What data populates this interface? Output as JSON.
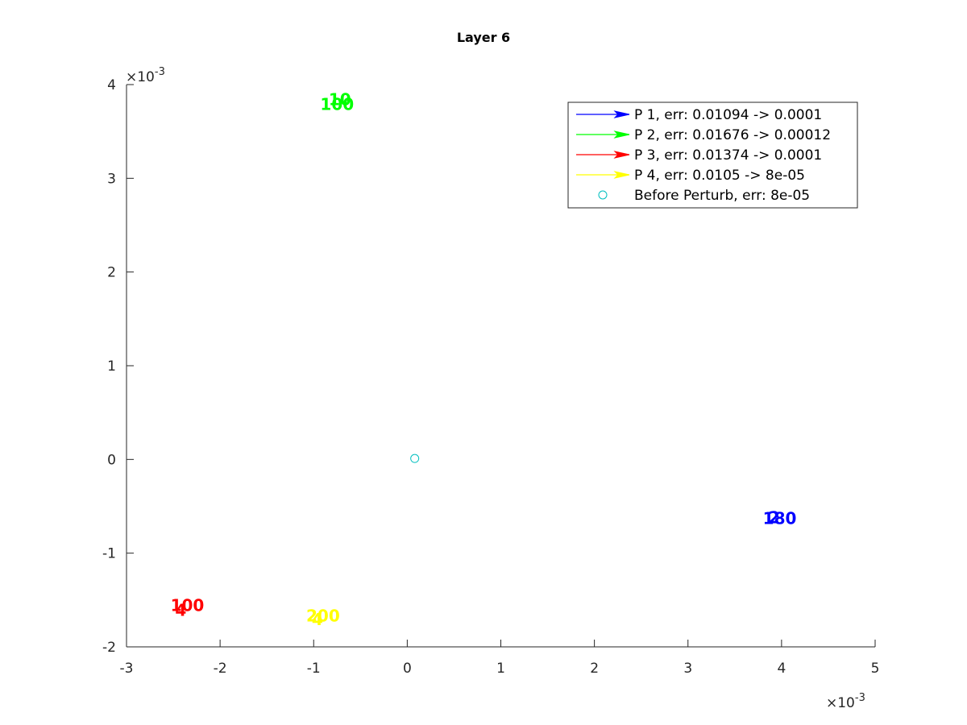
{
  "figure": {
    "background": "#ffffff"
  },
  "chart_data": {
    "type": "scatter",
    "title": "Layer 6",
    "xlabel": "",
    "ylabel": "",
    "xlim": [
      -3,
      5
    ],
    "ylim": [
      -2,
      4
    ],
    "x_ticks": [
      "-3",
      "-2",
      "-1",
      "0",
      "1",
      "2",
      "3",
      "4",
      "5"
    ],
    "y_ticks": [
      "-2",
      "-1",
      "0",
      "1",
      "2",
      "3",
      "4"
    ],
    "x_exponent": {
      "base": "×10",
      "power": "-3"
    },
    "y_exponent": {
      "base": "×10",
      "power": "-3"
    },
    "grid": false,
    "legend_position": "top-right",
    "series": [
      {
        "name": "P 1, err: 0.01094 -> 0.0001",
        "color": "#0000ff",
        "marker": "arrow",
        "points": [
          {
            "x": 3.92,
            "y": -0.61
          },
          {
            "x": 3.98,
            "y": -0.62
          }
        ],
        "point_labels": [
          "2",
          "180"
        ]
      },
      {
        "name": "P 2, err: 0.01676 -> 0.00012",
        "color": "#00ff00",
        "marker": "arrow",
        "points": [
          {
            "x": -0.72,
            "y": 3.85
          },
          {
            "x": -0.75,
            "y": 3.8
          }
        ],
        "point_labels": [
          "10",
          "100"
        ]
      },
      {
        "name": "P 3, err: 0.01374 -> 0.0001",
        "color": "#ff0000",
        "marker": "arrow",
        "points": [
          {
            "x": -2.35,
            "y": -1.55
          },
          {
            "x": -2.42,
            "y": -1.6
          }
        ],
        "point_labels": [
          "100",
          "4"
        ]
      },
      {
        "name": "P 4, err: 0.0105 -> 8e-05",
        "color": "#ffff00",
        "marker": "arrow",
        "points": [
          {
            "x": -0.9,
            "y": -1.66
          },
          {
            "x": -0.96,
            "y": -1.7
          }
        ],
        "point_labels": [
          "200",
          "4"
        ]
      },
      {
        "name": "Before Perturb, err: 8e-05",
        "color": "#00bfbf",
        "marker": "circle",
        "points": [
          {
            "x": 0.08,
            "y": 0.01
          }
        ],
        "point_labels": []
      }
    ]
  }
}
